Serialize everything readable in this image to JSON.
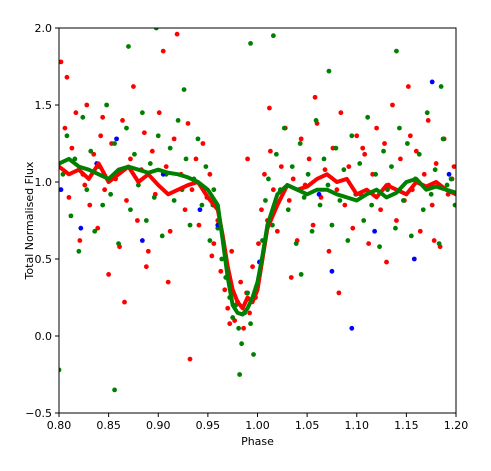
{
  "chart_data": {
    "type": "scatter",
    "xlabel": "Phase",
    "ylabel": "Total Normalised Flux",
    "xlim": [
      0.8,
      1.2
    ],
    "ylim": [
      -0.5,
      2.0
    ],
    "xticks": [
      0.8,
      0.85,
      0.9,
      0.95,
      1.0,
      1.05,
      1.1,
      1.15,
      1.2
    ],
    "xtick_labels": [
      "0.80",
      "0.85",
      "0.90",
      "0.95",
      "1.00",
      "1.05",
      "1.10",
      "1.15",
      "1.20"
    ],
    "yticks": [
      -0.5,
      0.0,
      0.5,
      1.0,
      1.5,
      2.0
    ],
    "ytick_labels": [
      "−0.5",
      "0.0",
      "0.5",
      "1.0",
      "1.5",
      "2.0"
    ],
    "grid": false,
    "series": [
      {
        "kind": "scatter",
        "color": "#ff0000",
        "x": [
          0.802,
          0.806,
          0.81,
          0.813,
          0.817,
          0.821,
          0.824,
          0.828,
          0.831,
          0.835,
          0.839,
          0.842,
          0.846,
          0.85,
          0.853,
          0.857,
          0.861,
          0.864,
          0.868,
          0.872,
          0.875,
          0.879,
          0.883,
          0.886,
          0.89,
          0.894,
          0.897,
          0.901,
          0.905,
          0.908,
          0.912,
          0.916,
          0.919,
          0.923,
          0.927,
          0.93,
          0.934,
          0.938,
          0.941,
          0.945,
          0.949,
          0.952,
          0.956,
          0.96,
          0.963,
          0.967,
          0.97,
          0.974,
          0.977,
          0.98,
          0.983,
          0.986,
          0.989,
          0.992,
          0.995,
          0.998,
          1.001,
          1.004,
          1.007,
          1.01,
          1.013,
          1.016,
          1.02,
          1.024,
          1.028,
          1.032,
          1.036,
          1.04,
          1.044,
          1.048,
          1.052,
          1.056,
          1.06,
          1.064,
          1.068,
          1.072,
          1.076,
          1.08,
          1.084,
          1.088,
          1.092,
          1.096,
          1.1,
          1.104,
          1.108,
          1.112,
          1.116,
          1.12,
          1.124,
          1.128,
          1.132,
          1.136,
          1.14,
          1.144,
          1.148,
          1.152,
          1.156,
          1.16,
          1.164,
          1.168,
          1.172,
          1.176,
          1.18,
          1.184,
          1.188,
          1.192,
          1.196,
          0.808,
          0.826,
          0.844,
          0.866,
          0.888,
          0.91,
          0.932,
          0.954,
          0.972,
          0.99,
          1.012,
          1.034,
          1.058,
          1.082,
          1.106,
          1.13,
          1.154,
          1.178,
          1.198
        ],
        "y": [
          1.78,
          1.35,
          0.9,
          1.22,
          1.45,
          0.62,
          1.05,
          1.5,
          0.85,
          1.18,
          0.7,
          1.3,
          0.95,
          0.4,
          1.25,
          1.02,
          0.58,
          1.4,
          0.88,
          1.15,
          1.62,
          0.75,
          1.08,
          1.32,
          0.55,
          1.2,
          0.92,
          1.45,
          1.85,
          1.1,
          0.68,
          1.28,
          1.96,
          1.05,
          0.82,
          1.38,
          0.95,
          1.15,
          0.72,
          1.25,
          0.9,
          1.05,
          0.6,
          0.75,
          0.42,
          0.3,
          0.18,
          0.55,
          0.1,
          0.22,
          0.35,
          0.05,
          0.28,
          0.15,
          0.45,
          0.25,
          0.6,
          0.82,
          1.05,
          0.75,
          1.2,
          0.95,
          0.68,
          1.1,
          1.35,
          0.88,
          1.02,
          0.62,
          1.28,
          0.98,
          1.15,
          0.72,
          1.38,
          0.9,
          1.08,
          0.55,
          1.22,
          0.95,
          1.45,
          0.85,
          1.1,
          0.7,
          1.3,
          0.92,
          1.18,
          0.6,
          1.05,
          1.35,
          0.82,
          1.25,
          0.98,
          1.5,
          0.75,
          1.15,
          0.88,
          1.62,
          0.95,
          1.2,
          0.68,
          1.05,
          1.4,
          0.85,
          1.12,
          0.58,
          1.28,
          0.92,
          1.02,
          1.68,
          0.98,
          1.42,
          0.22,
          0.45,
          0.35,
          -0.15,
          0.52,
          0.08,
          1.15,
          1.48,
          0.38,
          1.55,
          0.28,
          1.22,
          0.48,
          1.3,
          0.62,
          1.1
        ]
      },
      {
        "kind": "scatter",
        "color": "#008000",
        "x": [
          0.8,
          0.804,
          0.808,
          0.812,
          0.816,
          0.82,
          0.824,
          0.828,
          0.832,
          0.836,
          0.84,
          0.844,
          0.848,
          0.852,
          0.856,
          0.86,
          0.864,
          0.868,
          0.872,
          0.876,
          0.88,
          0.884,
          0.888,
          0.892,
          0.896,
          0.9,
          0.904,
          0.908,
          0.912,
          0.916,
          0.92,
          0.924,
          0.928,
          0.932,
          0.936,
          0.94,
          0.944,
          0.948,
          0.952,
          0.956,
          0.96,
          0.964,
          0.968,
          0.972,
          0.975,
          0.978,
          0.981,
          0.984,
          0.987,
          0.99,
          0.993,
          0.996,
          0.999,
          1.002,
          1.005,
          1.008,
          1.011,
          1.015,
          1.019,
          1.023,
          1.027,
          1.031,
          1.035,
          1.039,
          1.043,
          1.047,
          1.051,
          1.055,
          1.059,
          1.063,
          1.067,
          1.071,
          1.075,
          1.079,
          1.083,
          1.087,
          1.091,
          1.095,
          1.099,
          1.103,
          1.107,
          1.111,
          1.115,
          1.119,
          1.123,
          1.127,
          1.131,
          1.135,
          1.139,
          1.143,
          1.147,
          1.151,
          1.155,
          1.159,
          1.163,
          1.167,
          1.171,
          1.175,
          1.179,
          1.183,
          1.187,
          1.191,
          1.195,
          1.199,
          0.856,
          0.87,
          0.898,
          0.926,
          0.955,
          0.982,
          0.993,
          1.016,
          1.044,
          1.072,
          1.14,
          1.185
        ],
        "y": [
          -0.22,
          1.05,
          1.3,
          0.78,
          1.15,
          0.55,
          1.42,
          0.95,
          1.2,
          0.68,
          1.1,
          0.85,
          1.5,
          0.92,
          1.25,
          0.6,
          1.08,
          1.35,
          0.82,
          1.18,
          0.98,
          1.45,
          0.75,
          1.12,
          0.9,
          1.3,
          0.65,
          1.05,
          1.22,
          0.88,
          1.4,
          0.95,
          1.15,
          0.72,
          1.02,
          1.28,
          0.85,
          1.1,
          0.62,
          0.95,
          0.7,
          0.5,
          0.38,
          0.25,
          0.12,
          0.2,
          0.05,
          -0.05,
          0.15,
          0.28,
          0.08,
          -0.12,
          0.32,
          0.48,
          0.62,
          0.88,
          1.02,
          0.72,
          1.18,
          0.95,
          1.35,
          0.82,
          1.1,
          0.6,
          1.25,
          0.9,
          1.05,
          0.68,
          1.4,
          0.85,
          1.15,
          0.98,
          0.72,
          1.22,
          0.88,
          1.08,
          0.62,
          1.3,
          0.92,
          1.12,
          0.75,
          1.42,
          0.85,
          1.05,
          0.58,
          1.2,
          0.95,
          1.1,
          0.7,
          1.35,
          0.88,
          1.25,
          0.65,
          1.02,
          1.18,
          0.82,
          1.45,
          0.92,
          1.08,
          0.6,
          1.28,
          0.98,
          1.02,
          0.85,
          -0.35,
          1.88,
          2.0,
          1.6,
          0.85,
          -0.25,
          1.9,
          1.95,
          0.4,
          1.72,
          1.85,
          1.62
        ]
      },
      {
        "kind": "scatter",
        "color": "#0000ff",
        "x": [
          0.802,
          0.822,
          0.838,
          0.858,
          0.884,
          0.905,
          0.942,
          0.96,
          1.002,
          1.062,
          1.075,
          1.095,
          1.118,
          1.158,
          1.176,
          1.193
        ],
        "y": [
          0.95,
          0.7,
          1.12,
          1.28,
          0.62,
          1.05,
          0.82,
          0.72,
          0.48,
          0.92,
          0.42,
          0.05,
          0.68,
          0.5,
          1.65,
          1.05
        ]
      },
      {
        "kind": "line",
        "color": "#ff0000",
        "x": [
          0.8,
          0.81,
          0.82,
          0.83,
          0.84,
          0.85,
          0.86,
          0.87,
          0.88,
          0.89,
          0.9,
          0.91,
          0.92,
          0.93,
          0.94,
          0.95,
          0.96,
          0.965,
          0.97,
          0.975,
          0.98,
          0.985,
          0.99,
          0.995,
          1.0,
          1.005,
          1.01,
          1.02,
          1.03,
          1.04,
          1.05,
          1.06,
          1.07,
          1.08,
          1.09,
          1.1,
          1.11,
          1.12,
          1.13,
          1.14,
          1.15,
          1.16,
          1.17,
          1.18,
          1.19,
          1.2
        ],
        "y": [
          1.1,
          1.05,
          1.08,
          1.02,
          1.12,
          1.0,
          1.05,
          1.1,
          1.0,
          1.05,
          0.98,
          0.92,
          0.95,
          0.98,
          1.0,
          0.9,
          0.82,
          0.65,
          0.45,
          0.3,
          0.22,
          0.18,
          0.25,
          0.22,
          0.3,
          0.5,
          0.7,
          0.85,
          0.98,
          0.95,
          0.97,
          1.02,
          1.05,
          1.0,
          1.02,
          0.92,
          0.95,
          0.9,
          0.98,
          0.95,
          0.92,
          1.0,
          0.97,
          1.0,
          0.95,
          0.92
        ]
      },
      {
        "kind": "line",
        "color": "#008000",
        "x": [
          0.8,
          0.81,
          0.82,
          0.83,
          0.84,
          0.85,
          0.86,
          0.87,
          0.88,
          0.89,
          0.9,
          0.91,
          0.92,
          0.93,
          0.94,
          0.95,
          0.96,
          0.965,
          0.97,
          0.975,
          0.98,
          0.985,
          0.99,
          0.995,
          1.0,
          1.005,
          1.01,
          1.02,
          1.03,
          1.04,
          1.05,
          1.06,
          1.07,
          1.08,
          1.09,
          1.1,
          1.11,
          1.12,
          1.13,
          1.14,
          1.15,
          1.16,
          1.17,
          1.18,
          1.19,
          1.2
        ],
        "y": [
          1.12,
          1.15,
          1.1,
          1.08,
          1.05,
          1.02,
          1.08,
          1.1,
          1.08,
          1.06,
          1.08,
          1.06,
          1.05,
          1.03,
          1.0,
          0.95,
          0.85,
          0.62,
          0.38,
          0.2,
          0.15,
          0.14,
          0.18,
          0.25,
          0.35,
          0.52,
          0.72,
          0.92,
          0.98,
          0.95,
          0.92,
          0.95,
          0.95,
          0.92,
          0.9,
          0.88,
          0.92,
          0.95,
          0.9,
          0.93,
          1.0,
          1.02,
          0.95,
          0.97,
          0.95,
          0.93
        ]
      }
    ]
  }
}
